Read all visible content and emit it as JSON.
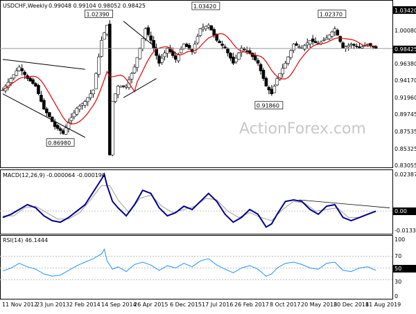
{
  "chart_data": [
    {
      "type": "candlestick",
      "title": "USDCHF,Weekly",
      "ohlc_header": "0.99048 0.99104 0.98052 0.98425",
      "last_price": 0.98425,
      "last_price_label": "0.98425",
      "ylim": [
        0.83055,
        1.0342
      ],
      "y_ticks": [
        "1.03420",
        "1.00080",
        "0.96380",
        "0.94170",
        "0.91960",
        "0.89745",
        "0.87535",
        "0.85325",
        "0.83055"
      ],
      "x_ticks": [
        "11 Nov 2012",
        "23 Jun 2013",
        "2 Feb 2014",
        "14 Sep 2014",
        "26 Apr 2015",
        "6 Dec 2015",
        "17 Jul 2016",
        "26 Feb 2017",
        "8 Oct 2017",
        "20 May 2018",
        "30 Dec 2018",
        "11 Aug 2019"
      ],
      "price_anchors": [
        [
          0,
          0.93
        ],
        [
          3,
          0.945
        ],
        [
          6,
          0.96
        ],
        [
          9,
          0.945
        ],
        [
          12,
          0.935
        ],
        [
          15,
          0.905
        ],
        [
          17,
          0.895
        ],
        [
          19,
          0.882
        ],
        [
          21,
          0.877
        ],
        [
          22,
          0.873
        ],
        [
          24,
          0.888
        ],
        [
          27,
          0.906
        ],
        [
          30,
          0.915
        ],
        [
          33,
          0.93
        ],
        [
          36,
          0.995
        ],
        [
          38,
          1.015
        ],
        [
          39,
          0.845
        ],
        [
          40,
          0.915
        ],
        [
          42,
          0.935
        ],
        [
          45,
          0.935
        ],
        [
          48,
          0.96
        ],
        [
          50,
          0.985
        ],
        [
          52,
          1.01
        ],
        [
          54,
          0.995
        ],
        [
          57,
          0.965
        ],
        [
          60,
          0.985
        ],
        [
          63,
          0.97
        ],
        [
          66,
          0.99
        ],
        [
          69,
          0.98
        ],
        [
          72,
          1.01
        ],
        [
          75,
          1.015
        ],
        [
          78,
          0.995
        ],
        [
          81,
          0.985
        ],
        [
          84,
          0.965
        ],
        [
          87,
          0.985
        ],
        [
          90,
          0.978
        ],
        [
          93,
          0.965
        ],
        [
          96,
          0.935
        ],
        [
          98,
          0.925
        ],
        [
          100,
          0.945
        ],
        [
          103,
          0.965
        ],
        [
          106,
          0.99
        ],
        [
          109,
          0.985
        ],
        [
          112,
          0.995
        ],
        [
          115,
          0.99
        ],
        [
          118,
          0.998
        ],
        [
          121,
          1.01
        ],
        [
          124,
          0.985
        ],
        [
          127,
          0.99
        ],
        [
          130,
          0.985
        ],
        [
          133,
          0.99
        ],
        [
          136,
          0.984
        ]
      ],
      "labels": [
        {
          "text": "1.02390",
          "bar": 35,
          "price": 1.0239
        },
        {
          "text": "1.03420",
          "bar": 74,
          "price": 1.0342
        },
        {
          "text": "1.02370",
          "bar": 120,
          "price": 1.0237
        },
        {
          "text": "0.86980",
          "bar": 21,
          "price": 0.8698
        },
        {
          "text": "0.91860",
          "bar": 97,
          "price": 0.9186
        }
      ],
      "trendlines": [
        {
          "from": [
            0,
            0.97
          ],
          "to": [
            30,
            0.957
          ]
        },
        {
          "from": [
            0,
            0.925
          ],
          "to": [
            30,
            0.868
          ]
        },
        {
          "from": [
            44,
            1.02
          ],
          "to": [
            56,
            0.985
          ]
        },
        {
          "from": [
            44,
            0.92
          ],
          "to": [
            56,
            0.945
          ]
        }
      ],
      "watermark": "ActionForex.com"
    },
    {
      "type": "line",
      "title": "MACD(12,26,9) -0.000064 -0.000190",
      "y_ticks": [
        "0.023873",
        "0.00",
        "-0.013346"
      ],
      "ylim": [
        -0.013346,
        0.023873
      ],
      "series": [
        {
          "values": [
            [
              0,
              -0.004
            ],
            [
              3,
              -0.002
            ],
            [
              6,
              0.001
            ],
            [
              9,
              0.004
            ],
            [
              12,
              0.002
            ],
            [
              15,
              -0.003
            ],
            [
              18,
              -0.006
            ],
            [
              21,
              -0.007
            ],
            [
              24,
              -0.004
            ],
            [
              27,
              0.0
            ],
            [
              30,
              0.004
            ],
            [
              33,
              0.012
            ],
            [
              36,
              0.02
            ],
            [
              37,
              0.023
            ],
            [
              38,
              0.016
            ],
            [
              40,
              0.006
            ],
            [
              42,
              0.002
            ],
            [
              45,
              -0.003
            ],
            [
              48,
              0.004
            ],
            [
              51,
              0.013
            ],
            [
              54,
              0.011
            ],
            [
              57,
              0.002
            ],
            [
              60,
              -0.003
            ],
            [
              63,
              -0.001
            ],
            [
              66,
              0.003
            ],
            [
              69,
              0.001
            ],
            [
              72,
              0.006
            ],
            [
              75,
              0.011
            ],
            [
              78,
              0.006
            ],
            [
              81,
              -0.002
            ],
            [
              84,
              -0.007
            ],
            [
              87,
              -0.004
            ],
            [
              90,
              0.001
            ],
            [
              93,
              -0.002
            ],
            [
              96,
              -0.01
            ],
            [
              98,
              -0.008
            ],
            [
              100,
              -0.002
            ],
            [
              103,
              0.006
            ],
            [
              106,
              0.007
            ],
            [
              109,
              0.006
            ],
            [
              112,
              0.001
            ],
            [
              115,
              -0.002
            ],
            [
              118,
              0.003
            ],
            [
              121,
              0.004
            ],
            [
              124,
              -0.004
            ],
            [
              127,
              -0.006
            ],
            [
              130,
              -0.004
            ],
            [
              133,
              -0.002
            ],
            [
              136,
              -6.4e-05
            ]
          ]
        },
        {
          "values": [
            [
              0,
              -0.003
            ],
            [
              4,
              -0.003
            ],
            [
              8,
              0.002
            ],
            [
              12,
              0.003
            ],
            [
              16,
              -0.001
            ],
            [
              20,
              -0.005
            ],
            [
              24,
              -0.005
            ],
            [
              28,
              -0.001
            ],
            [
              32,
              0.007
            ],
            [
              36,
              0.016
            ],
            [
              39,
              0.016
            ],
            [
              42,
              0.007
            ],
            [
              46,
              -0.001
            ],
            [
              50,
              0.008
            ],
            [
              54,
              0.01
            ],
            [
              58,
              0.003
            ],
            [
              62,
              -0.001
            ],
            [
              66,
              0.001
            ],
            [
              70,
              0.003
            ],
            [
              74,
              0.008
            ],
            [
              78,
              0.007
            ],
            [
              82,
              0.0
            ],
            [
              86,
              -0.004
            ],
            [
              90,
              -0.001
            ],
            [
              94,
              -0.004
            ],
            [
              98,
              -0.006
            ],
            [
              102,
              0.001
            ],
            [
              106,
              0.006
            ],
            [
              110,
              0.005
            ],
            [
              114,
              0.0
            ],
            [
              118,
              0.001
            ],
            [
              122,
              0.002
            ],
            [
              126,
              -0.004
            ],
            [
              130,
              -0.004
            ],
            [
              136,
              -0.00019
            ]
          ]
        }
      ],
      "trendlines": [
        {
          "from": [
            108,
            0.007
          ],
          "to": [
            141,
            0.002
          ]
        }
      ]
    },
    {
      "type": "line",
      "title": "RSI(14) 46.1444",
      "y_ticks": [
        "100",
        "70",
        "50",
        "30",
        "0"
      ],
      "ylim": [
        0,
        100
      ],
      "series": [
        {
          "values": [
            [
              0,
              45
            ],
            [
              3,
              50
            ],
            [
              6,
              58
            ],
            [
              9,
              52
            ],
            [
              12,
              48
            ],
            [
              15,
              40
            ],
            [
              18,
              36
            ],
            [
              21,
              38
            ],
            [
              24,
              46
            ],
            [
              27,
              54
            ],
            [
              30,
              60
            ],
            [
              33,
              66
            ],
            [
              36,
              74
            ],
            [
              37,
              82
            ],
            [
              38,
              62
            ],
            [
              40,
              48
            ],
            [
              42,
              52
            ],
            [
              45,
              44
            ],
            [
              48,
              56
            ],
            [
              51,
              60
            ],
            [
              54,
              55
            ],
            [
              57,
              46
            ],
            [
              60,
              54
            ],
            [
              63,
              50
            ],
            [
              66,
              58
            ],
            [
              69,
              52
            ],
            [
              72,
              62
            ],
            [
              75,
              66
            ],
            [
              78,
              55
            ],
            [
              81,
              48
            ],
            [
              84,
              42
            ],
            [
              87,
              50
            ],
            [
              90,
              54
            ],
            [
              93,
              48
            ],
            [
              96,
              36
            ],
            [
              98,
              40
            ],
            [
              100,
              50
            ],
            [
              103,
              58
            ],
            [
              106,
              60
            ],
            [
              109,
              56
            ],
            [
              112,
              50
            ],
            [
              115,
              48
            ],
            [
              118,
              58
            ],
            [
              121,
              60
            ],
            [
              124,
              46
            ],
            [
              127,
              44
            ],
            [
              130,
              50
            ],
            [
              133,
              52
            ],
            [
              136,
              46.1444
            ]
          ]
        }
      ]
    }
  ]
}
